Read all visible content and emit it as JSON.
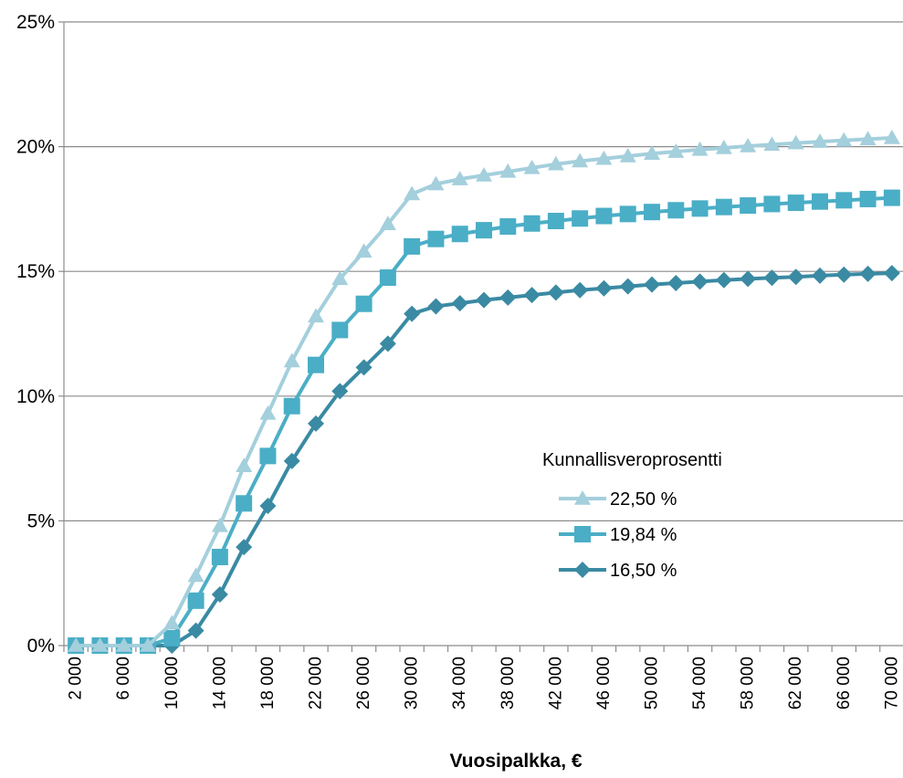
{
  "chart_data": {
    "type": "line",
    "title": "",
    "xlabel": "Vuosipalkka, €",
    "ylabel": "",
    "ylim": [
      0,
      25
    ],
    "yticks": [
      0,
      5,
      10,
      15,
      20,
      25
    ],
    "ytick_labels": [
      "0%",
      "5%",
      "10%",
      "15%",
      "20%",
      "25%"
    ],
    "grid": true,
    "legend": {
      "title": "Kunnallisveroprosentti",
      "position": "right-middle"
    },
    "x": [
      2000,
      4000,
      6000,
      8000,
      10000,
      12000,
      14000,
      16000,
      18000,
      20000,
      22000,
      24000,
      26000,
      28000,
      30000,
      32000,
      34000,
      36000,
      38000,
      40000,
      42000,
      44000,
      46000,
      48000,
      50000,
      52000,
      54000,
      56000,
      58000,
      60000,
      62000,
      64000,
      66000,
      68000,
      70000
    ],
    "xtick_labels": [
      "2 000",
      "6 000",
      "10 000",
      "14 000",
      "18 000",
      "22 000",
      "26 000",
      "30 000",
      "34 000",
      "38 000",
      "42 000",
      "46 000",
      "50 000",
      "54 000",
      "58 000",
      "62 000",
      "66 000",
      "70 000"
    ],
    "series": [
      {
        "name": "22,50 %",
        "color": "#a4cfdc",
        "marker": "triangle",
        "values": [
          0,
          0,
          0,
          0,
          0.9,
          2.8,
          4.8,
          7.2,
          9.3,
          11.4,
          13.2,
          14.7,
          15.8,
          16.9,
          18.1,
          18.5,
          18.7,
          18.85,
          19.0,
          19.15,
          19.3,
          19.42,
          19.52,
          19.62,
          19.72,
          19.8,
          19.88,
          19.95,
          20.02,
          20.08,
          20.14,
          20.2,
          20.25,
          20.3,
          20.35
        ]
      },
      {
        "name": "19,84 %",
        "color": "#4aaec6",
        "marker": "square",
        "values": [
          0,
          0,
          0,
          0,
          0.3,
          1.8,
          3.55,
          5.7,
          7.6,
          9.6,
          11.25,
          12.65,
          13.7,
          14.75,
          16.0,
          16.3,
          16.5,
          16.65,
          16.8,
          16.92,
          17.02,
          17.12,
          17.22,
          17.3,
          17.38,
          17.45,
          17.52,
          17.58,
          17.64,
          17.7,
          17.75,
          17.8,
          17.85,
          17.9,
          17.95
        ]
      },
      {
        "name": "16,50 %",
        "color": "#3a8aa3",
        "marker": "diamond",
        "values": [
          0,
          0,
          0,
          0,
          0,
          0.6,
          2.05,
          3.95,
          5.6,
          7.4,
          8.9,
          10.2,
          11.15,
          12.1,
          13.3,
          13.6,
          13.72,
          13.85,
          13.95,
          14.05,
          14.15,
          14.25,
          14.32,
          14.4,
          14.47,
          14.53,
          14.59,
          14.65,
          14.7,
          14.74,
          14.78,
          14.83,
          14.87,
          14.9,
          14.93
        ]
      }
    ]
  }
}
